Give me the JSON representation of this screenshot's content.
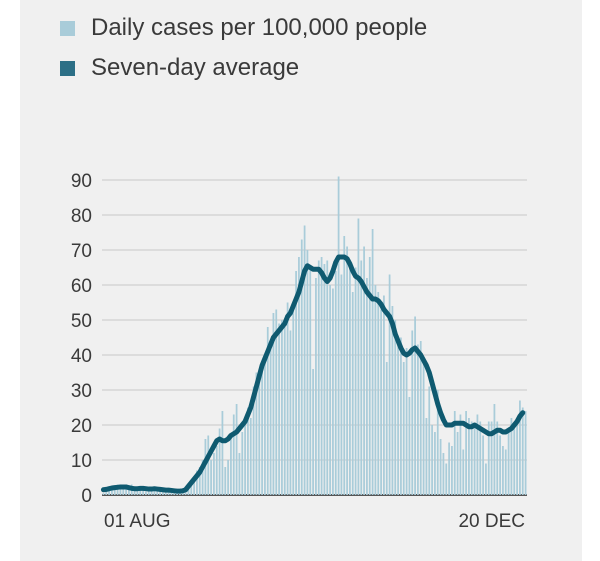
{
  "colors": {
    "bars": "#a9ccd9",
    "line": "#0f5a70",
    "grid": "#c8c8c8",
    "text": "#3a3a3a"
  },
  "legend": {
    "daily_label": "Daily cases per 100,000 people",
    "average_label": "Seven-day average"
  },
  "chart_data": {
    "type": "bar",
    "x_start": "2020-07-28",
    "x_end": "2020-12-22",
    "x_ticks": [
      "01 AUG",
      "20 DEC"
    ],
    "ylim": [
      0,
      90
    ],
    "y_ticks": [
      0,
      10,
      20,
      30,
      40,
      50,
      60,
      70,
      80,
      90
    ],
    "grid": true,
    "legend_position": "top-left",
    "series": [
      {
        "name": "Daily cases per 100,000 people",
        "type": "bar",
        "values": [
          0.5,
          1,
          2,
          1.5,
          2.5,
          3,
          2,
          3,
          2.5,
          2,
          3,
          2,
          1.5,
          2,
          1.5,
          1,
          2,
          1.5,
          2,
          1,
          2,
          1,
          1.5,
          1,
          1.5,
          1,
          1,
          0.5,
          1,
          2,
          3,
          4,
          5,
          7,
          8,
          10,
          16,
          17,
          10,
          12,
          14,
          19,
          24,
          8,
          10,
          17,
          23,
          26,
          12,
          18,
          22,
          25,
          22,
          31,
          35,
          34,
          38,
          40,
          48,
          44,
          52,
          53,
          49,
          50,
          48,
          55,
          47,
          55,
          64,
          68,
          73,
          77,
          70,
          65,
          36,
          62,
          67,
          68,
          66,
          67,
          60,
          59,
          64,
          91,
          63,
          74,
          71,
          67,
          58,
          65,
          79,
          67,
          71,
          62,
          68,
          76,
          60,
          58,
          53,
          57,
          38,
          63,
          54,
          50,
          43,
          45,
          38,
          42,
          28,
          47,
          51,
          43,
          44,
          38,
          22,
          31,
          20,
          18,
          30,
          16,
          12,
          9,
          15,
          14,
          24,
          18,
          23,
          13,
          24,
          22,
          21,
          20,
          23,
          21,
          17,
          9,
          21,
          21,
          26,
          21,
          17,
          14,
          13,
          19,
          22,
          19,
          20,
          27,
          25,
          24
        ],
        "note": "values estimated from gridlines"
      },
      {
        "name": "Seven-day average",
        "type": "line",
        "values": [
          1.5,
          1.6,
          1.8,
          2,
          2.1,
          2.2,
          2.3,
          2.3,
          2.3,
          2.1,
          1.9,
          1.8,
          1.8,
          1.9,
          1.9,
          1.8,
          1.7,
          1.7,
          1.8,
          1.7,
          1.6,
          1.5,
          1.4,
          1.4,
          1.3,
          1.2,
          1.1,
          1.1,
          1.2,
          1.5,
          2.5,
          3.5,
          4.5,
          5.5,
          6.5,
          8,
          9.5,
          11,
          12.5,
          14,
          15.5,
          16,
          15.5,
          15.5,
          16,
          17,
          17.5,
          18,
          19,
          20,
          21,
          23,
          25,
          28,
          31,
          34,
          37,
          39,
          41,
          43,
          45,
          46,
          47,
          48,
          49,
          51,
          52,
          54,
          56,
          58,
          61,
          64,
          65.5,
          65,
          64.5,
          64.5,
          64.5,
          63.5,
          62,
          61,
          62,
          64,
          66.5,
          68,
          68,
          68,
          67.5,
          66,
          64,
          62.5,
          62,
          61,
          59.5,
          58,
          57,
          56,
          56,
          55.5,
          54.5,
          53,
          52,
          51,
          49,
          46,
          44,
          42,
          40.5,
          40,
          40.5,
          41.5,
          42,
          41,
          40,
          38.5,
          37,
          35,
          32,
          29,
          26,
          23.5,
          21.5,
          20,
          20,
          20,
          20.5,
          20.5,
          20.5,
          20.5,
          20,
          19.5,
          19.5,
          20,
          19.5,
          19,
          18.5,
          18,
          17.5,
          17.5,
          18,
          18.5,
          18.5,
          18,
          18,
          18.5,
          19,
          20,
          21,
          22.5,
          23.5
        ]
      }
    ]
  }
}
